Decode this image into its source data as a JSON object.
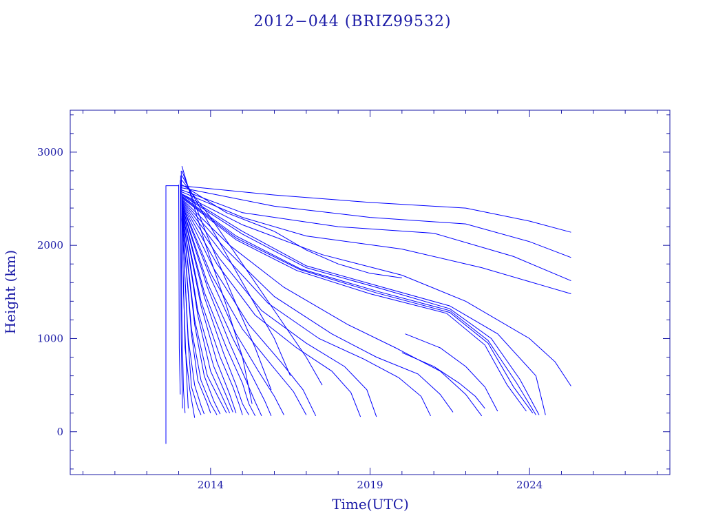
{
  "chart_data": {
    "type": "line",
    "title": "2012−044 (BRIZ99532)",
    "xlabel": "Time(UTC)",
    "ylabel": "Height (km)",
    "xlim": [
      2009.6,
      2028.4
    ],
    "ylim": [
      -460,
      3450
    ],
    "x_ticks": [
      {
        "value": 2014,
        "label": "2014"
      },
      {
        "value": 2019,
        "label": "2019"
      },
      {
        "value": 2024,
        "label": "2024"
      }
    ],
    "y_ticks": [
      {
        "value": 0,
        "label": "0"
      },
      {
        "value": 1000,
        "label": "1000"
      },
      {
        "value": 2000,
        "label": "2000"
      },
      {
        "value": 3000,
        "label": "3000"
      }
    ],
    "grid": false,
    "series_color": "#0000ff",
    "axis_color": "#1a1aa6",
    "series": [
      {
        "x": [
          2012.6,
          2012.6,
          2012.6,
          2013.0
        ],
        "y": [
          2640,
          -130,
          2640,
          2640
        ]
      },
      {
        "x": [
          2013.05,
          2016,
          2019,
          2022,
          2024,
          2025.3
        ],
        "y": [
          2640,
          2540,
          2460,
          2400,
          2260,
          2140
        ]
      },
      {
        "x": [
          2013.05,
          2016,
          2019,
          2022,
          2024,
          2025.3
        ],
        "y": [
          2620,
          2420,
          2300,
          2230,
          2040,
          1870
        ]
      },
      {
        "x": [
          2013.05,
          2015,
          2018,
          2021,
          2023.5,
          2025.3
        ],
        "y": [
          2600,
          2350,
          2200,
          2130,
          1880,
          1620
        ]
      },
      {
        "x": [
          2013.05,
          2015,
          2017,
          2020,
          2022.5,
          2024.5,
          2025.3
        ],
        "y": [
          2580,
          2300,
          2100,
          1960,
          1760,
          1560,
          1480
        ]
      },
      {
        "x": [
          2013.05,
          2015,
          2017.5,
          2020,
          2022,
          2024,
          2024.8,
          2025.3
        ],
        "y": [
          2560,
          2220,
          1900,
          1680,
          1400,
          1000,
          750,
          490
        ]
      },
      {
        "x": [
          2013.1,
          2015,
          2017,
          2019.5,
          2021.5,
          2023,
          2024.2,
          2024.5
        ],
        "y": [
          2550,
          2150,
          1780,
          1540,
          1350,
          1050,
          600,
          180
        ]
      },
      {
        "x": [
          2013.1,
          2015,
          2017,
          2019.5,
          2021.5,
          2022.8,
          2023.7,
          2024.3
        ],
        "y": [
          2540,
          2120,
          1760,
          1520,
          1320,
          1000,
          560,
          180
        ]
      },
      {
        "x": [
          2013.1,
          2014.8,
          2016.8,
          2019.3,
          2021.5,
          2022.7,
          2023.6,
          2024.2
        ],
        "y": [
          2530,
          2100,
          1750,
          1500,
          1300,
          980,
          520,
          180
        ]
      },
      {
        "x": [
          2013.1,
          2014.8,
          2016.8,
          2019.2,
          2021.5,
          2022.7,
          2023.5,
          2024.1
        ],
        "y": [
          2520,
          2080,
          1740,
          1490,
          1280,
          950,
          480,
          200
        ]
      },
      {
        "x": [
          2013.1,
          2014.8,
          2016.7,
          2019.0,
          2021.4,
          2022.6,
          2023.3,
          2023.9
        ],
        "y": [
          2510,
          2060,
          1730,
          1480,
          1270,
          930,
          500,
          220
        ]
      },
      {
        "x": [
          2020.1,
          2021.2,
          2022.0,
          2022.6,
          2023.0
        ],
        "y": [
          1050,
          900,
          700,
          480,
          220
        ]
      },
      {
        "x": [
          2020.0,
          2021.0,
          2021.8,
          2022.3,
          2022.6
        ],
        "y": [
          850,
          700,
          520,
          380,
          250
        ]
      },
      {
        "x": [
          2013.1,
          2014.6,
          2016.3,
          2018.3,
          2019.8,
          2021.2,
          2022.0,
          2022.5
        ],
        "y": [
          2500,
          2000,
          1550,
          1150,
          900,
          650,
          400,
          170
        ]
      },
      {
        "x": [
          2013.1,
          2014.5,
          2016.0,
          2017.8,
          2019.2,
          2020.5,
          2021.2,
          2021.6
        ],
        "y": [
          2490,
          1950,
          1450,
          1050,
          800,
          620,
          400,
          210
        ]
      },
      {
        "x": [
          2013.1,
          2014.4,
          2015.8,
          2017.4,
          2018.8,
          2019.9,
          2020.6,
          2020.9
        ],
        "y": [
          2480,
          1900,
          1380,
          1000,
          780,
          580,
          380,
          170
        ]
      },
      {
        "x": [
          2013.1,
          2014.3,
          2015.6,
          2017.0,
          2018.2,
          2018.9,
          2019.2
        ],
        "y": [
          2470,
          1850,
          1300,
          950,
          700,
          450,
          160
        ]
      },
      {
        "x": [
          2013.1,
          2014.2,
          2015.4,
          2016.7,
          2017.8,
          2018.4,
          2018.7
        ],
        "y": [
          2460,
          1800,
          1250,
          900,
          650,
          420,
          160
        ]
      },
      {
        "x": [
          2013.1,
          2014.1,
          2015.2,
          2016.2,
          2016.9,
          2017.3
        ],
        "y": [
          2450,
          1750,
          1150,
          750,
          450,
          170
        ]
      },
      {
        "x": [
          2013.1,
          2014.0,
          2015.0,
          2015.9,
          2016.6,
          2017.0
        ],
        "y": [
          2440,
          1700,
          1100,
          720,
          430,
          180
        ]
      },
      {
        "x": [
          2013.1,
          2014.0,
          2014.8,
          2015.5,
          2016.0,
          2016.3
        ],
        "y": [
          2430,
          1650,
          1050,
          650,
          380,
          180
        ]
      },
      {
        "x": [
          2013.1,
          2013.9,
          2014.7,
          2015.3,
          2015.7,
          2015.9
        ],
        "y": [
          2420,
          1600,
          1000,
          600,
          330,
          170
        ]
      },
      {
        "x": [
          2013.1,
          2013.9,
          2014.6,
          2015.1,
          2015.4,
          2015.6
        ],
        "y": [
          2410,
          1550,
          950,
          560,
          320,
          170
        ]
      },
      {
        "x": [
          2013.1,
          2013.8,
          2014.5,
          2015.0,
          2015.2,
          2015.4
        ],
        "y": [
          2400,
          1500,
          900,
          520,
          300,
          170
        ]
      },
      {
        "x": [
          2013.1,
          2013.8,
          2014.4,
          2014.8,
          2015.0,
          2015.2
        ],
        "y": [
          2390,
          1450,
          850,
          500,
          300,
          180
        ]
      },
      {
        "x": [
          2013.1,
          2013.7,
          2014.3,
          2014.7,
          2014.9,
          2015.0
        ],
        "y": [
          2380,
          1400,
          800,
          480,
          290,
          180
        ]
      },
      {
        "x": [
          2013.1,
          2013.7,
          2014.2,
          2014.6,
          2014.8
        ],
        "y": [
          2370,
          1350,
          750,
          400,
          200
        ]
      },
      {
        "x": [
          2013.1,
          2013.6,
          2014.1,
          2014.5,
          2014.7
        ],
        "y": [
          2360,
          1300,
          700,
          380,
          210
        ]
      },
      {
        "x": [
          2013.1,
          2013.6,
          2014.0,
          2014.4,
          2014.6
        ],
        "y": [
          2350,
          1250,
          650,
          350,
          200
        ]
      },
      {
        "x": [
          2013.1,
          2013.5,
          2013.9,
          2014.3,
          2014.5
        ],
        "y": [
          2340,
          1200,
          600,
          330,
          200
        ]
      },
      {
        "x": [
          2013.1,
          2013.5,
          2013.8,
          2014.1,
          2014.3
        ],
        "y": [
          2330,
          1150,
          600,
          330,
          190
        ]
      },
      {
        "x": [
          2013.1,
          2013.4,
          2013.7,
          2014.0,
          2014.2
        ],
        "y": [
          2320,
          1100,
          550,
          300,
          180
        ]
      },
      {
        "x": [
          2013.1,
          2013.4,
          2013.6,
          2013.9,
          2014.0
        ],
        "y": [
          2310,
          1050,
          550,
          300,
          200
        ]
      },
      {
        "x": [
          2013.1,
          2013.3,
          2013.5,
          2013.7,
          2013.8
        ],
        "y": [
          2300,
          1000,
          500,
          280,
          190
        ]
      },
      {
        "x": [
          2013.1,
          2013.3,
          2013.4,
          2013.6,
          2013.7
        ],
        "y": [
          2290,
          950,
          480,
          260,
          180
        ]
      },
      {
        "x": [
          2013.1,
          2013.2,
          2013.35,
          2013.45,
          2013.5
        ],
        "y": [
          2280,
          900,
          450,
          250,
          150
        ]
      },
      {
        "x": [
          2013.08,
          2013.15,
          2013.25,
          2013.3
        ],
        "y": [
          2800,
          1500,
          600,
          250
        ]
      },
      {
        "x": [
          2013.06,
          2013.1,
          2013.15,
          2013.2
        ],
        "y": [
          2750,
          1200,
          450,
          200
        ]
      },
      {
        "x": [
          2013.05,
          2013.08,
          2013.12
        ],
        "y": [
          2700,
          1000,
          250
        ]
      },
      {
        "x": [
          2013.0,
          2013.02,
          2013.05
        ],
        "y": [
          2650,
          900,
          400
        ]
      },
      {
        "x": [
          2013.1,
          2014.5,
          2016.0,
          2017.0,
          2018.0,
          2019.0,
          2020.0
        ],
        "y": [
          2650,
          2350,
          2150,
          1950,
          1800,
          1700,
          1650
        ]
      },
      {
        "x": [
          2013.1,
          2014.0,
          2015.0,
          2016.0,
          2017.0,
          2017.5
        ],
        "y": [
          2700,
          2300,
          1800,
          1300,
          800,
          500
        ]
      },
      {
        "x": [
          2013.1,
          2014.0,
          2015.0,
          2016.0,
          2016.5
        ],
        "y": [
          2750,
          2200,
          1600,
          1000,
          600
        ]
      },
      {
        "x": [
          2013.1,
          2013.9,
          2014.7,
          2015.4,
          2015.9
        ],
        "y": [
          2800,
          2100,
          1450,
          900,
          450
        ]
      },
      {
        "x": [
          2013.1,
          2013.8,
          2014.5,
          2015.0,
          2015.3
        ],
        "y": [
          2850,
          2050,
          1350,
          800,
          300
        ]
      }
    ]
  }
}
